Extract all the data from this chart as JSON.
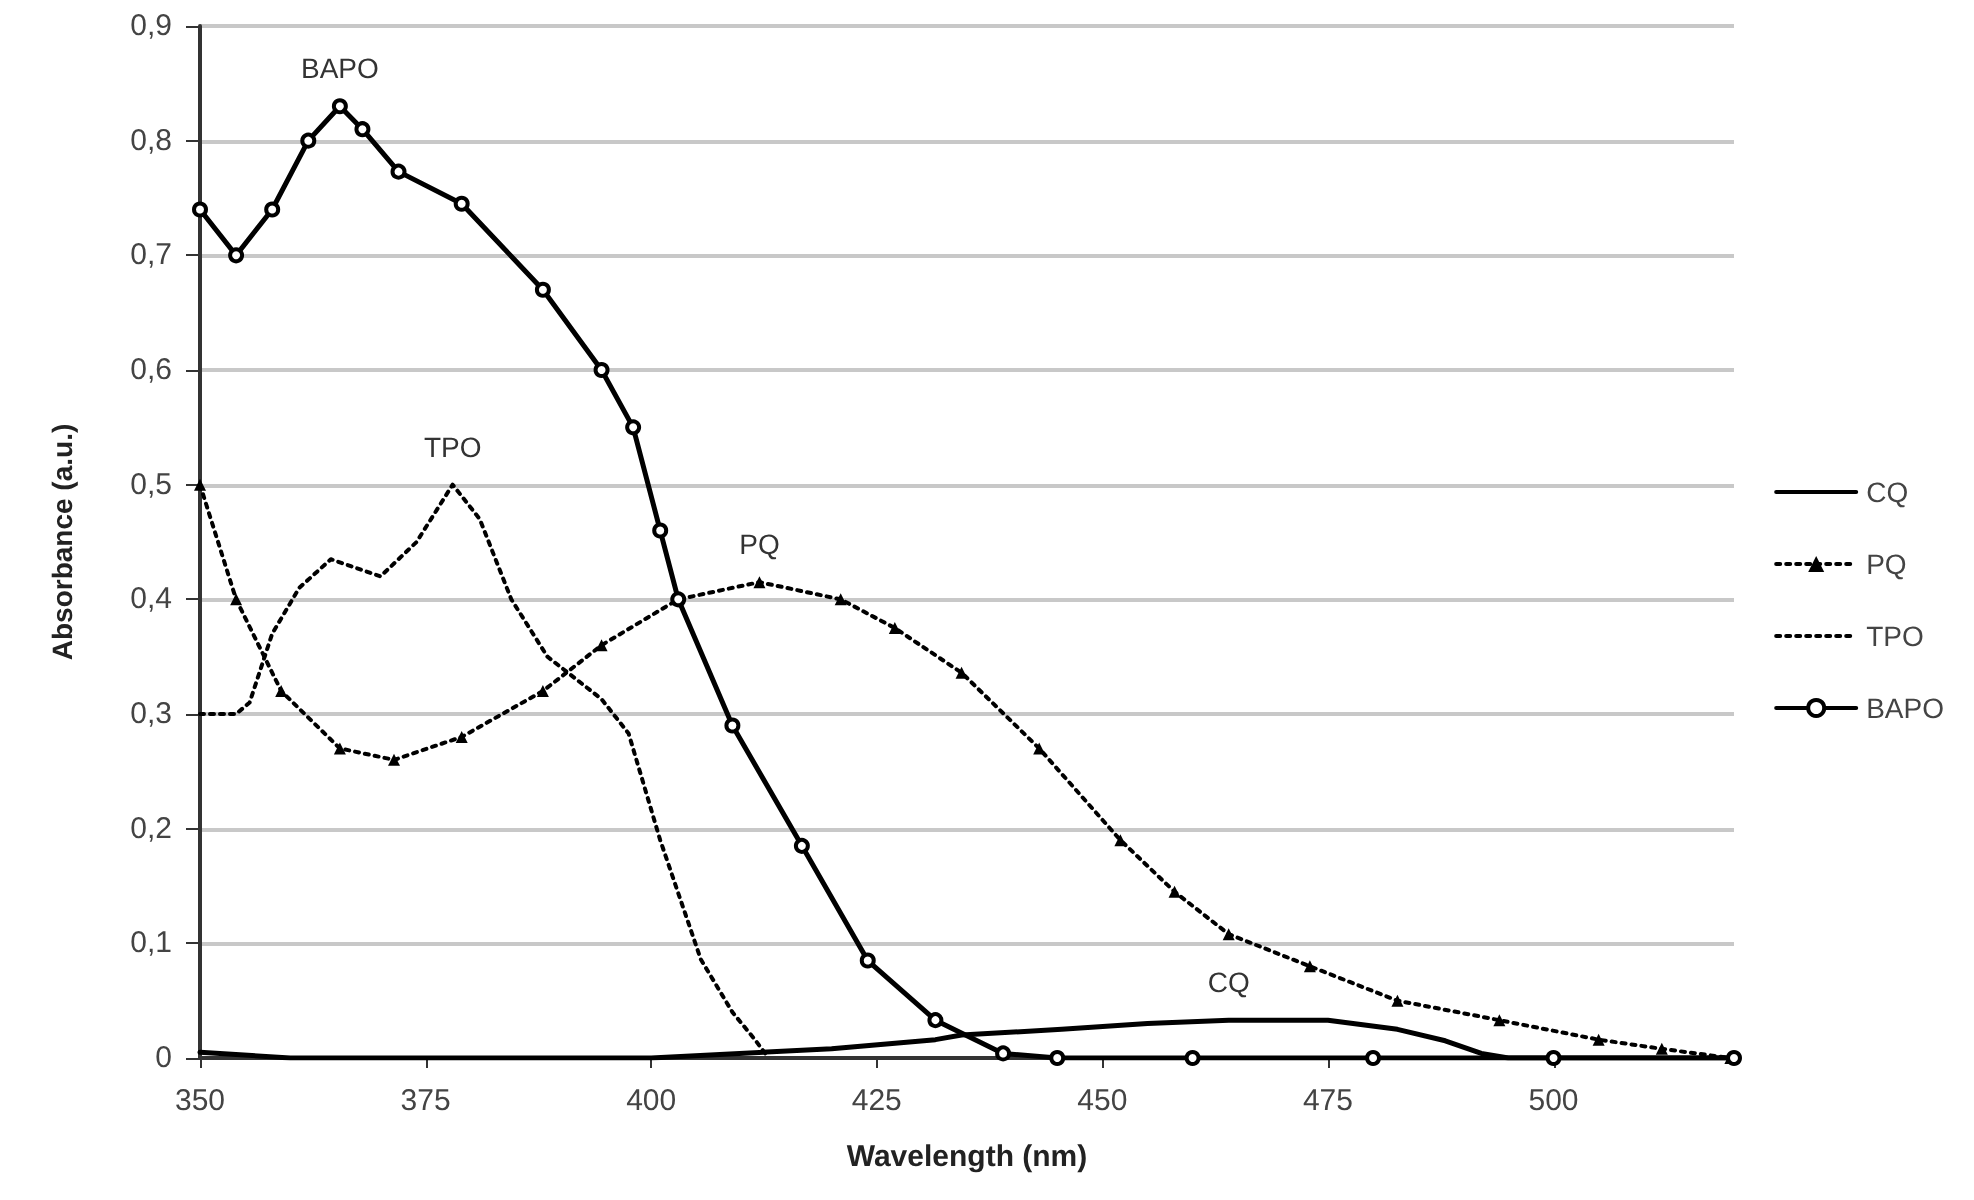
{
  "chart_data": {
    "type": "line",
    "xlabel": "Wavelength (nm)",
    "ylabel": "Absorbance (a.u.)",
    "xlim": [
      350,
      520
    ],
    "xticks": [
      350,
      375,
      400,
      425,
      450,
      475,
      500
    ],
    "ylim": [
      0,
      0.9
    ],
    "yticks": [
      {
        "value": 0,
        "label": "0"
      },
      {
        "value": 0.1,
        "label": "0,1"
      },
      {
        "value": 0.2,
        "label": "0,2"
      },
      {
        "value": 0.3,
        "label": "0,3"
      },
      {
        "value": 0.4,
        "label": "0,4"
      },
      {
        "value": 0.5,
        "label": "0,5"
      },
      {
        "value": 0.6,
        "label": "0,6"
      },
      {
        "value": 0.7,
        "label": "0,7"
      },
      {
        "value": 0.8,
        "label": "0,8"
      },
      {
        "value": 0.9,
        "label": "0,9"
      }
    ],
    "grid": "y",
    "legend": "right",
    "series": [
      {
        "name": "CQ",
        "color": "#000000",
        "line_style": "solid",
        "marker": "none",
        "x": [
          350,
          360,
          380,
          400,
          420,
          431.5,
          434.4,
          445.5,
          455,
          464,
          475,
          482.7,
          488,
          492,
          495,
          520
        ],
        "values": [
          0.005,
          0,
          0,
          0,
          0.008,
          0.016,
          0.02,
          0.025,
          0.03,
          0.033,
          0.033,
          0.025,
          0.015,
          0.004,
          0,
          0
        ]
      },
      {
        "name": "PQ",
        "color": "#000000",
        "line_style": "dotted",
        "marker": "triangle",
        "x": [
          350,
          354,
          359,
          365.5,
          371.5,
          379,
          388,
          394.5,
          403,
          412,
          421,
          427,
          434.4,
          443,
          452,
          458,
          464,
          473,
          482.7,
          494,
          505,
          512,
          519.6
        ],
        "values": [
          0.5,
          0.4,
          0.32,
          0.27,
          0.26,
          0.28,
          0.32,
          0.36,
          0.4,
          0.415,
          0.4,
          0.375,
          0.336,
          0.27,
          0.19,
          0.145,
          0.108,
          0.08,
          0.05,
          0.033,
          0.016,
          0.008,
          0
        ]
      },
      {
        "name": "TPO",
        "color": "#000000",
        "line_style": "dotted",
        "marker": "none",
        "x": [
          350,
          354,
          355.5,
          358,
          361,
          364.5,
          370,
          374,
          378,
          381,
          384.5,
          388.5,
          394.5,
          397.5,
          401,
          405.5,
          409,
          411.5,
          413
        ],
        "values": [
          0.3,
          0.3,
          0.31,
          0.37,
          0.41,
          0.435,
          0.42,
          0.45,
          0.5,
          0.47,
          0.4,
          0.35,
          0.313,
          0.283,
          0.19,
          0.086,
          0.04,
          0.016,
          0
        ]
      },
      {
        "name": "BAPO",
        "color": "#000000",
        "line_style": "solid",
        "marker": "circle",
        "x": [
          350,
          354,
          358,
          362,
          365.5,
          368,
          372,
          379,
          388,
          394.5,
          398,
          401,
          403,
          409,
          416.7,
          424,
          431.5,
          439,
          445,
          460,
          480,
          500,
          520
        ],
        "values": [
          0.74,
          0.7,
          0.74,
          0.8,
          0.83,
          0.81,
          0.773,
          0.745,
          0.67,
          0.6,
          0.55,
          0.46,
          0.4,
          0.29,
          0.185,
          0.085,
          0.033,
          0.004,
          0,
          0,
          0,
          0,
          0
        ]
      }
    ],
    "annotations": [
      {
        "text": "BAPO",
        "x": 365.5,
        "y": 0.83
      },
      {
        "text": "TPO",
        "x": 378,
        "y": 0.5
      },
      {
        "text": "PQ",
        "x": 412,
        "y": 0.415
      },
      {
        "text": "CQ",
        "x": 464,
        "y": 0.033
      }
    ]
  }
}
